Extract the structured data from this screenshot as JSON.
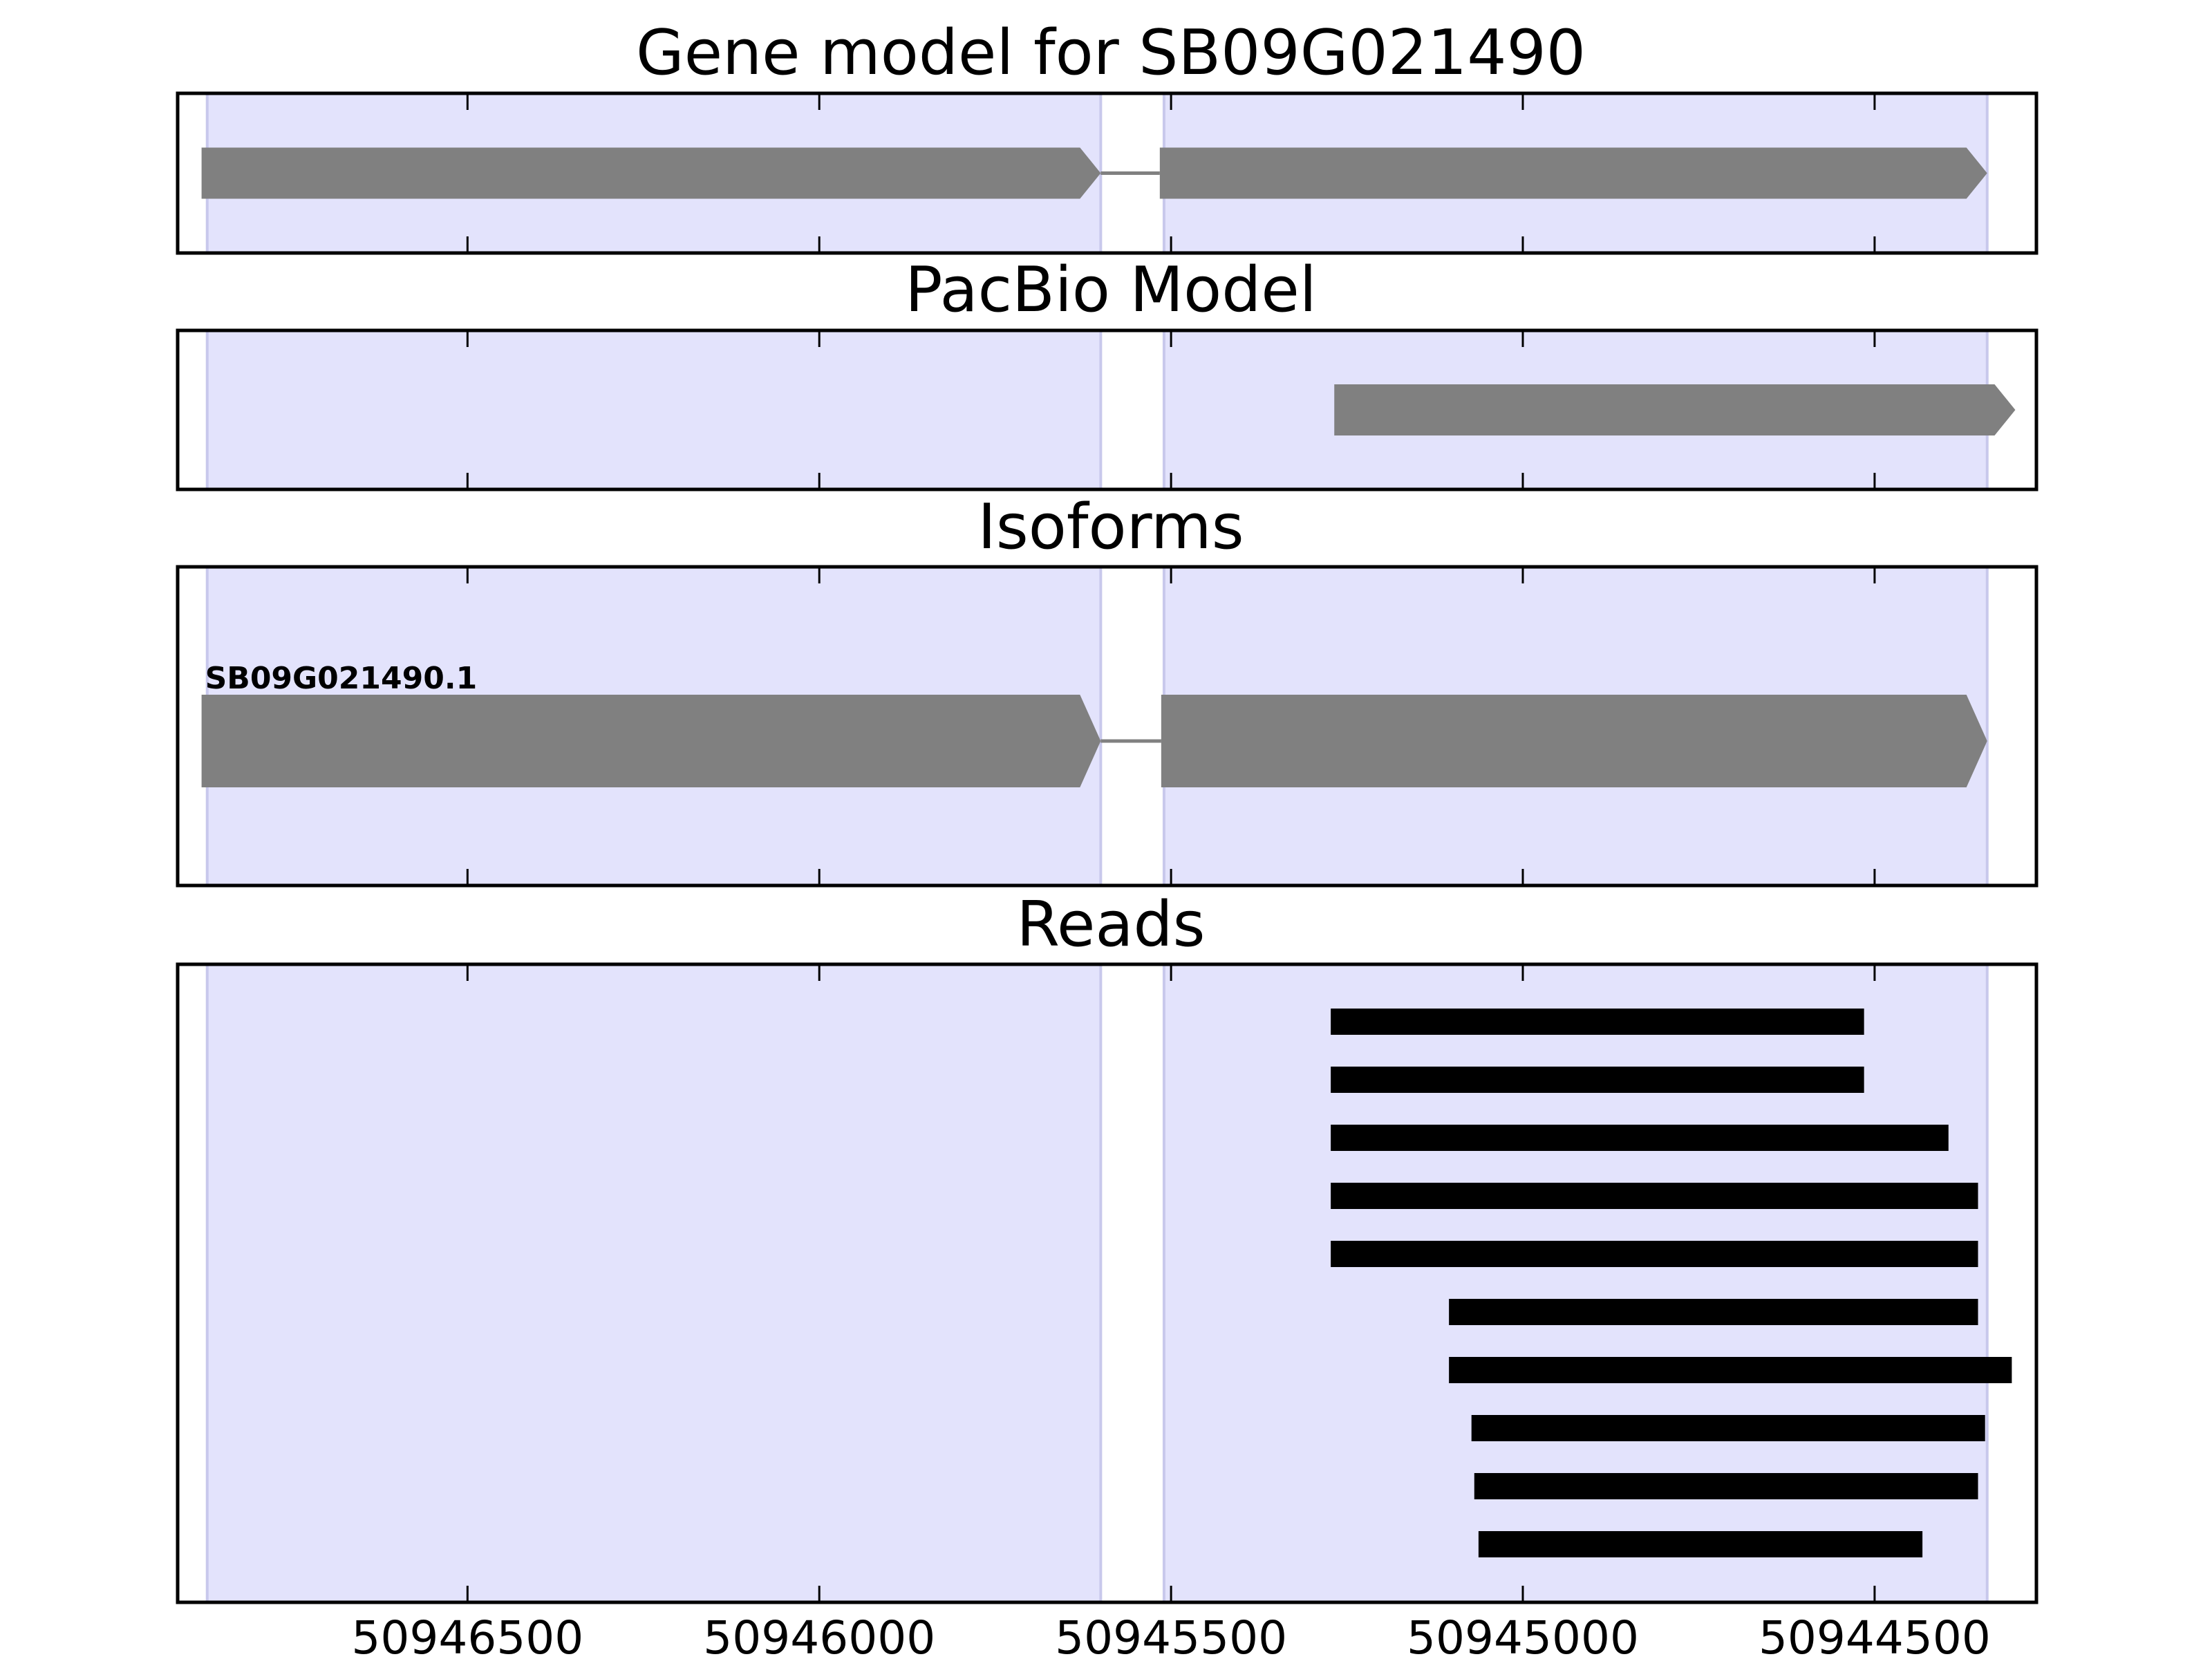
{
  "chart_data": {
    "type": "gene-track",
    "xaxis": {
      "direction": "descending",
      "xlim": [
        50946912,
        50944270
      ],
      "ticks": [
        50946500,
        50946000,
        50945500,
        50945000,
        50944500
      ],
      "tick_labels": [
        "50946500",
        "50946000",
        "50945500",
        "50945000",
        "50944500"
      ]
    },
    "exon_shading": {
      "color": "#e3e3fc",
      "regions": [
        [
          50946870,
          50945600
        ],
        [
          50945510,
          50944340
        ]
      ]
    },
    "panels": [
      {
        "id": "gene-model",
        "title": "Gene model for SB09G021490",
        "features": [
          {
            "strand": "-",
            "exons": [
              [
                50946878,
                50945600
              ],
              [
                50945516,
                50944340
              ]
            ]
          }
        ]
      },
      {
        "id": "pacbio-model",
        "title": "PacBio Model",
        "features": [
          {
            "strand": "-",
            "exons": [
              [
                50945268,
                50944300
              ]
            ]
          }
        ]
      },
      {
        "id": "isoforms",
        "title": "Isoforms",
        "features": [
          {
            "name": "SB09G021490.1",
            "strand": "-",
            "exons": [
              [
                50946878,
                50945600
              ],
              [
                50945514,
                50944340
              ]
            ]
          }
        ]
      },
      {
        "id": "reads",
        "title": "Reads",
        "reads": [
          [
            50945273,
            50944515
          ],
          [
            50945273,
            50944515
          ],
          [
            50945273,
            50944395
          ],
          [
            50945273,
            50944353
          ],
          [
            50945273,
            50944353
          ],
          [
            50945105,
            50944353
          ],
          [
            50945105,
            50944305
          ],
          [
            50945073,
            50944343
          ],
          [
            50945069,
            50944353
          ],
          [
            50945063,
            50944432
          ]
        ]
      }
    ]
  },
  "colors": {
    "feature": "#808080",
    "read": "#000000",
    "shading": "#e3e3fc",
    "shading_edge": "#c8c8ec"
  }
}
